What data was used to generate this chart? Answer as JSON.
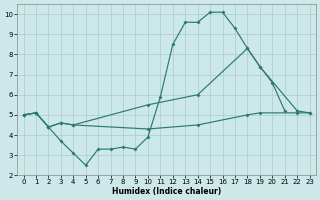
{
  "xlabel": "Humidex (Indice chaleur)",
  "bg_color": "#cce8e8",
  "grid_color": "#aacccc",
  "line_color": "#2d7a6a",
  "xlim": [
    -0.5,
    23.5
  ],
  "ylim": [
    2.0,
    10.5
  ],
  "xticks": [
    0,
    1,
    2,
    3,
    4,
    5,
    6,
    7,
    8,
    9,
    10,
    11,
    12,
    13,
    14,
    15,
    16,
    17,
    18,
    19,
    20,
    21,
    22,
    23
  ],
  "yticks": [
    2,
    3,
    4,
    5,
    6,
    7,
    8,
    9,
    10
  ],
  "curve1_x": [
    0,
    1,
    2,
    3,
    4,
    5,
    6,
    7,
    8,
    9,
    10,
    11,
    12,
    13,
    14,
    15,
    16,
    17,
    18,
    19,
    20,
    21
  ],
  "curve1_y": [
    5.0,
    5.1,
    4.4,
    3.7,
    3.1,
    2.5,
    3.3,
    3.3,
    3.4,
    3.3,
    3.9,
    5.9,
    8.5,
    9.6,
    9.6,
    10.1,
    10.1,
    9.3,
    8.3,
    7.4,
    6.6,
    5.2
  ],
  "curve2_x": [
    0,
    1,
    2,
    3,
    4,
    10,
    14,
    18,
    19,
    22,
    23
  ],
  "curve2_y": [
    5.0,
    5.1,
    4.4,
    4.6,
    4.5,
    5.5,
    6.0,
    8.3,
    7.4,
    5.2,
    5.1
  ],
  "curve3_x": [
    0,
    1,
    2,
    3,
    4,
    10,
    14,
    18,
    19,
    22,
    23
  ],
  "curve3_y": [
    5.0,
    5.1,
    4.4,
    4.6,
    4.5,
    4.3,
    4.5,
    5.0,
    5.1,
    5.1,
    5.1
  ]
}
